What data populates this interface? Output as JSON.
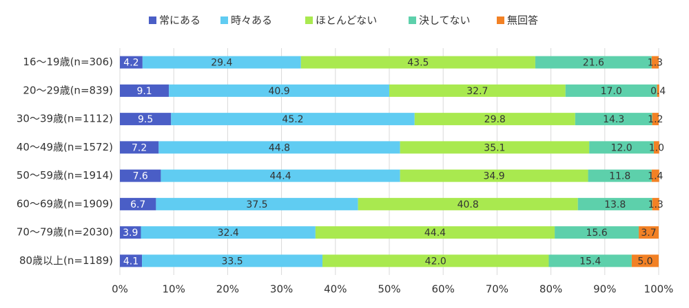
{
  "chart_data": {
    "type": "stacked_bar_horizontal",
    "categories": [
      "16～19歳(n=306)",
      "20～29歳(n=839)",
      "30～39歳(n=1112)",
      "40～49歳(n=1572)",
      "50～59歳(n=1914)",
      "60～69歳(n=1909)",
      "70～79歳(n=2030)",
      "80歳以上(n=1189)"
    ],
    "series": [
      {
        "name": "常にある",
        "color": "#4a5ec6",
        "values": [
          4.2,
          9.1,
          9.5,
          7.2,
          7.6,
          6.7,
          3.9,
          4.1
        ],
        "value_labels": [
          "4.2",
          "9.1",
          "9.5",
          "7.2",
          "7.6",
          "6.7",
          "3.9",
          "4.1"
        ]
      },
      {
        "name": "時々ある",
        "color": "#60ccf2",
        "values": [
          29.4,
          40.9,
          45.2,
          44.8,
          44.4,
          37.5,
          32.4,
          33.5
        ],
        "value_labels": [
          "29.4",
          "40.9",
          "45.2",
          "44.8",
          "44.4",
          "37.5",
          "32.4",
          "33.5"
        ]
      },
      {
        "name": "ほとんどない",
        "color": "#a9e94f",
        "values": [
          43.5,
          32.7,
          29.8,
          35.1,
          34.9,
          40.8,
          44.4,
          42.0
        ],
        "value_labels": [
          "43.5",
          "32.7",
          "29.8",
          "35.1",
          "34.9",
          "40.8",
          "44.4",
          "42.0"
        ]
      },
      {
        "name": "決してない",
        "color": "#5dd0ab",
        "values": [
          21.6,
          17.0,
          14.3,
          12.0,
          11.8,
          13.8,
          15.6,
          15.4
        ],
        "value_labels": [
          "21.6",
          "17.0",
          "14.3",
          "12.0",
          "11.8",
          "13.8",
          "15.6",
          "15.4"
        ]
      },
      {
        "name": "無回答",
        "color": "#f28125",
        "values": [
          1.3,
          0.4,
          1.2,
          1.0,
          1.4,
          1.3,
          3.7,
          5.0
        ],
        "value_labels": [
          "1.3",
          "0.4",
          "1.2",
          "1.0",
          "1.4",
          "1.3",
          "3.7",
          "5.0"
        ]
      }
    ],
    "xlim": [
      0,
      100
    ],
    "xticks": [
      {
        "value": 0,
        "label": "0%"
      },
      {
        "value": 10,
        "label": "10%"
      },
      {
        "value": 20,
        "label": "20%"
      },
      {
        "value": 30,
        "label": "30%"
      },
      {
        "value": 40,
        "label": "40%"
      },
      {
        "value": 50,
        "label": "50%"
      },
      {
        "value": 60,
        "label": "60%"
      },
      {
        "value": 70,
        "label": "70%"
      },
      {
        "value": 80,
        "label": "80%"
      },
      {
        "value": 90,
        "label": "90%"
      },
      {
        "value": 100,
        "label": "100%"
      }
    ],
    "grid": true,
    "legend": "top"
  }
}
